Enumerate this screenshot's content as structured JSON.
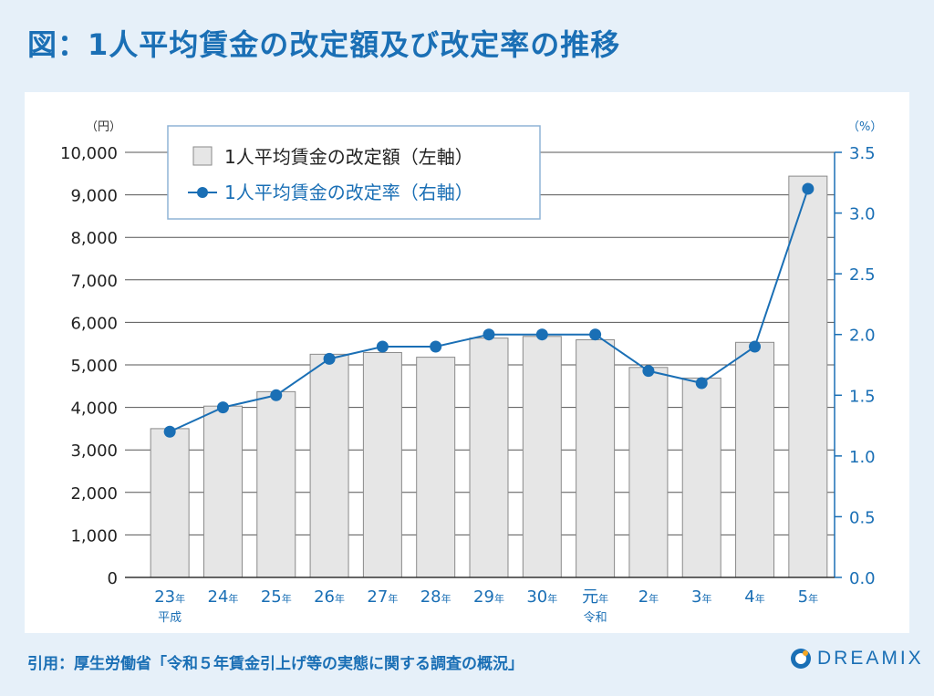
{
  "title": "図：1人平均賃金の改定額及び改定率の推移",
  "footer": {
    "citation": "引用：厚生労働省「令和５年賃金引上げ等の実態に関する調査の概況」"
  },
  "brand": {
    "name": "DREAMIX"
  },
  "colors": {
    "accent": "#1a6fb5",
    "bar_fill": "#e6e6e6",
    "bar_stroke": "#8a8a8a",
    "line": "#1a6fb5",
    "background": "#e6f0f9"
  },
  "chart_data": {
    "type": "bar",
    "categories": [
      {
        "num": "23",
        "suffix": "年",
        "era": "平成"
      },
      {
        "num": "24",
        "suffix": "年",
        "era": ""
      },
      {
        "num": "25",
        "suffix": "年",
        "era": ""
      },
      {
        "num": "26",
        "suffix": "年",
        "era": ""
      },
      {
        "num": "27",
        "suffix": "年",
        "era": ""
      },
      {
        "num": "28",
        "suffix": "年",
        "era": ""
      },
      {
        "num": "29",
        "suffix": "年",
        "era": ""
      },
      {
        "num": "30",
        "suffix": "年",
        "era": ""
      },
      {
        "num": "元",
        "suffix": "年",
        "era": "令和"
      },
      {
        "num": "2",
        "suffix": "年",
        "era": ""
      },
      {
        "num": "3",
        "suffix": "年",
        "era": ""
      },
      {
        "num": "4",
        "suffix": "年",
        "era": ""
      },
      {
        "num": "5",
        "suffix": "年",
        "era": ""
      }
    ],
    "series": [
      {
        "name": "1人平均賃金の改定額（左軸）",
        "kind": "bar",
        "axis": "left",
        "values": [
          3500,
          4030,
          4370,
          5250,
          5290,
          5180,
          5630,
          5670,
          5590,
          4940,
          4690,
          5530,
          9440
        ]
      },
      {
        "name": "1人平均賃金の改定率（右軸）",
        "kind": "line",
        "axis": "right",
        "values": [
          1.2,
          1.4,
          1.5,
          1.8,
          1.9,
          1.9,
          2.0,
          2.0,
          2.0,
          1.7,
          1.6,
          1.9,
          3.2
        ]
      }
    ],
    "left_axis": {
      "unit": "（円）",
      "ylim": [
        0,
        10000
      ],
      "ticks": [
        0,
        1000,
        2000,
        3000,
        4000,
        5000,
        6000,
        7000,
        8000,
        9000,
        10000
      ],
      "tick_labels": [
        "0",
        "1,000",
        "2,000",
        "3,000",
        "4,000",
        "5,000",
        "6,000",
        "7,000",
        "8,000",
        "9,000",
        "10,000"
      ]
    },
    "right_axis": {
      "unit": "（%）",
      "ylim": [
        0,
        3.5
      ],
      "ticks": [
        0,
        0.5,
        1.0,
        1.5,
        2.0,
        2.5,
        3.0,
        3.5
      ],
      "tick_labels": [
        "0.0",
        "0.5",
        "1.0",
        "1.5",
        "2.0",
        "2.5",
        "3.0",
        "3.5"
      ]
    },
    "grid": true,
    "legend": "top-left"
  }
}
